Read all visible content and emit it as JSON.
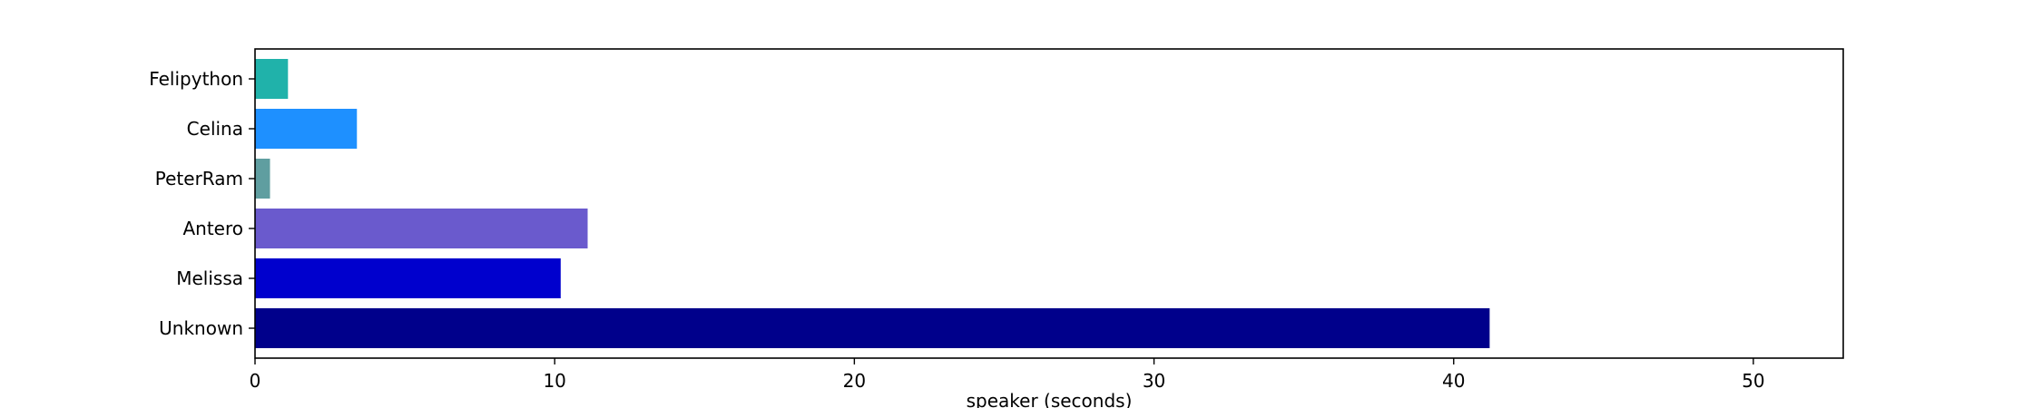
{
  "chart_data": {
    "type": "bar",
    "orientation": "horizontal",
    "categories": [
      "Unknown",
      "Melissa",
      "Antero",
      "PeterRam",
      "Celina",
      "Felipython"
    ],
    "values": [
      41.2,
      10.2,
      11.1,
      0.5,
      3.4,
      1.1
    ],
    "colors": [
      "#00008b",
      "#0000cd",
      "#6a5acd",
      "#5f9ea0",
      "#1e90ff",
      "#20b2aa"
    ],
    "xlabel": "speaker (seconds)",
    "ylabel": "",
    "title": "",
    "xlim": [
      0,
      53
    ],
    "xticks": [
      0,
      10,
      20,
      30,
      40,
      50
    ],
    "grid": false
  }
}
